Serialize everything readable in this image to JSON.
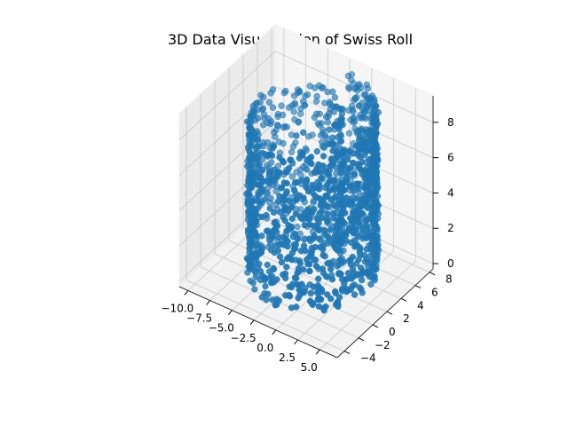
{
  "chart_data": {
    "type": "scatter",
    "projection": "3d",
    "title": "3D Data Visualization of Swiss Roll",
    "xlabel": "",
    "ylabel": "",
    "zlabel": "",
    "grid": true,
    "xlim": [
      -11,
      7
    ],
    "ylim": [
      -5,
      8.5
    ],
    "zlim": [
      -0.3,
      9.5
    ],
    "x_ticks": [
      -10.0,
      -7.5,
      -5.0,
      -2.5,
      0.0,
      2.5,
      5.0
    ],
    "x_tick_labels": [
      "−10.0",
      "−7.5",
      "−5.0",
      "−2.5",
      "0.0",
      "2.5",
      "5.0"
    ],
    "y_ticks": [
      -4,
      -2,
      0,
      2,
      4,
      6,
      8
    ],
    "y_tick_labels": [
      "−4",
      "−2",
      "0",
      "2",
      "4",
      "6",
      "8"
    ],
    "z_ticks": [
      0,
      2,
      4,
      6,
      8
    ],
    "z_tick_labels": [
      "0",
      "2",
      "4",
      "6",
      "8"
    ],
    "series": [
      {
        "color": "#1f77b4",
        "marker": "circle",
        "alpha": 0.55,
        "point_count": 1500,
        "manifold": "swiss roll",
        "x_range": [
          -9.5,
          5.0
        ],
        "y_range": [
          -4.5,
          8.0
        ],
        "z_range": [
          0,
          9
        ],
        "x": [
          4.8,
          0.1,
          -5.6,
          -9.4,
          -7.1,
          0.6,
          3.9,
          -8.8,
          -9.0,
          -5.2,
          0.4,
          2.1,
          -3.2,
          4.5,
          -8.9
        ],
        "y": [
          0.2,
          5.6,
          3.1,
          4.5,
          8.0,
          -3.0,
          1.5,
          -2.8,
          5.9,
          6.9,
          6.4,
          -4.3,
          8.0,
          2.4,
          2.0
        ],
        "z": [
          0.5,
          4.1,
          8.8,
          2.0,
          6.3,
          7.5,
          3.2,
          1.1,
          8.0,
          5.5,
          2.9,
          0.8,
          7.0,
          4.4,
          6.6
        ]
      }
    ]
  }
}
